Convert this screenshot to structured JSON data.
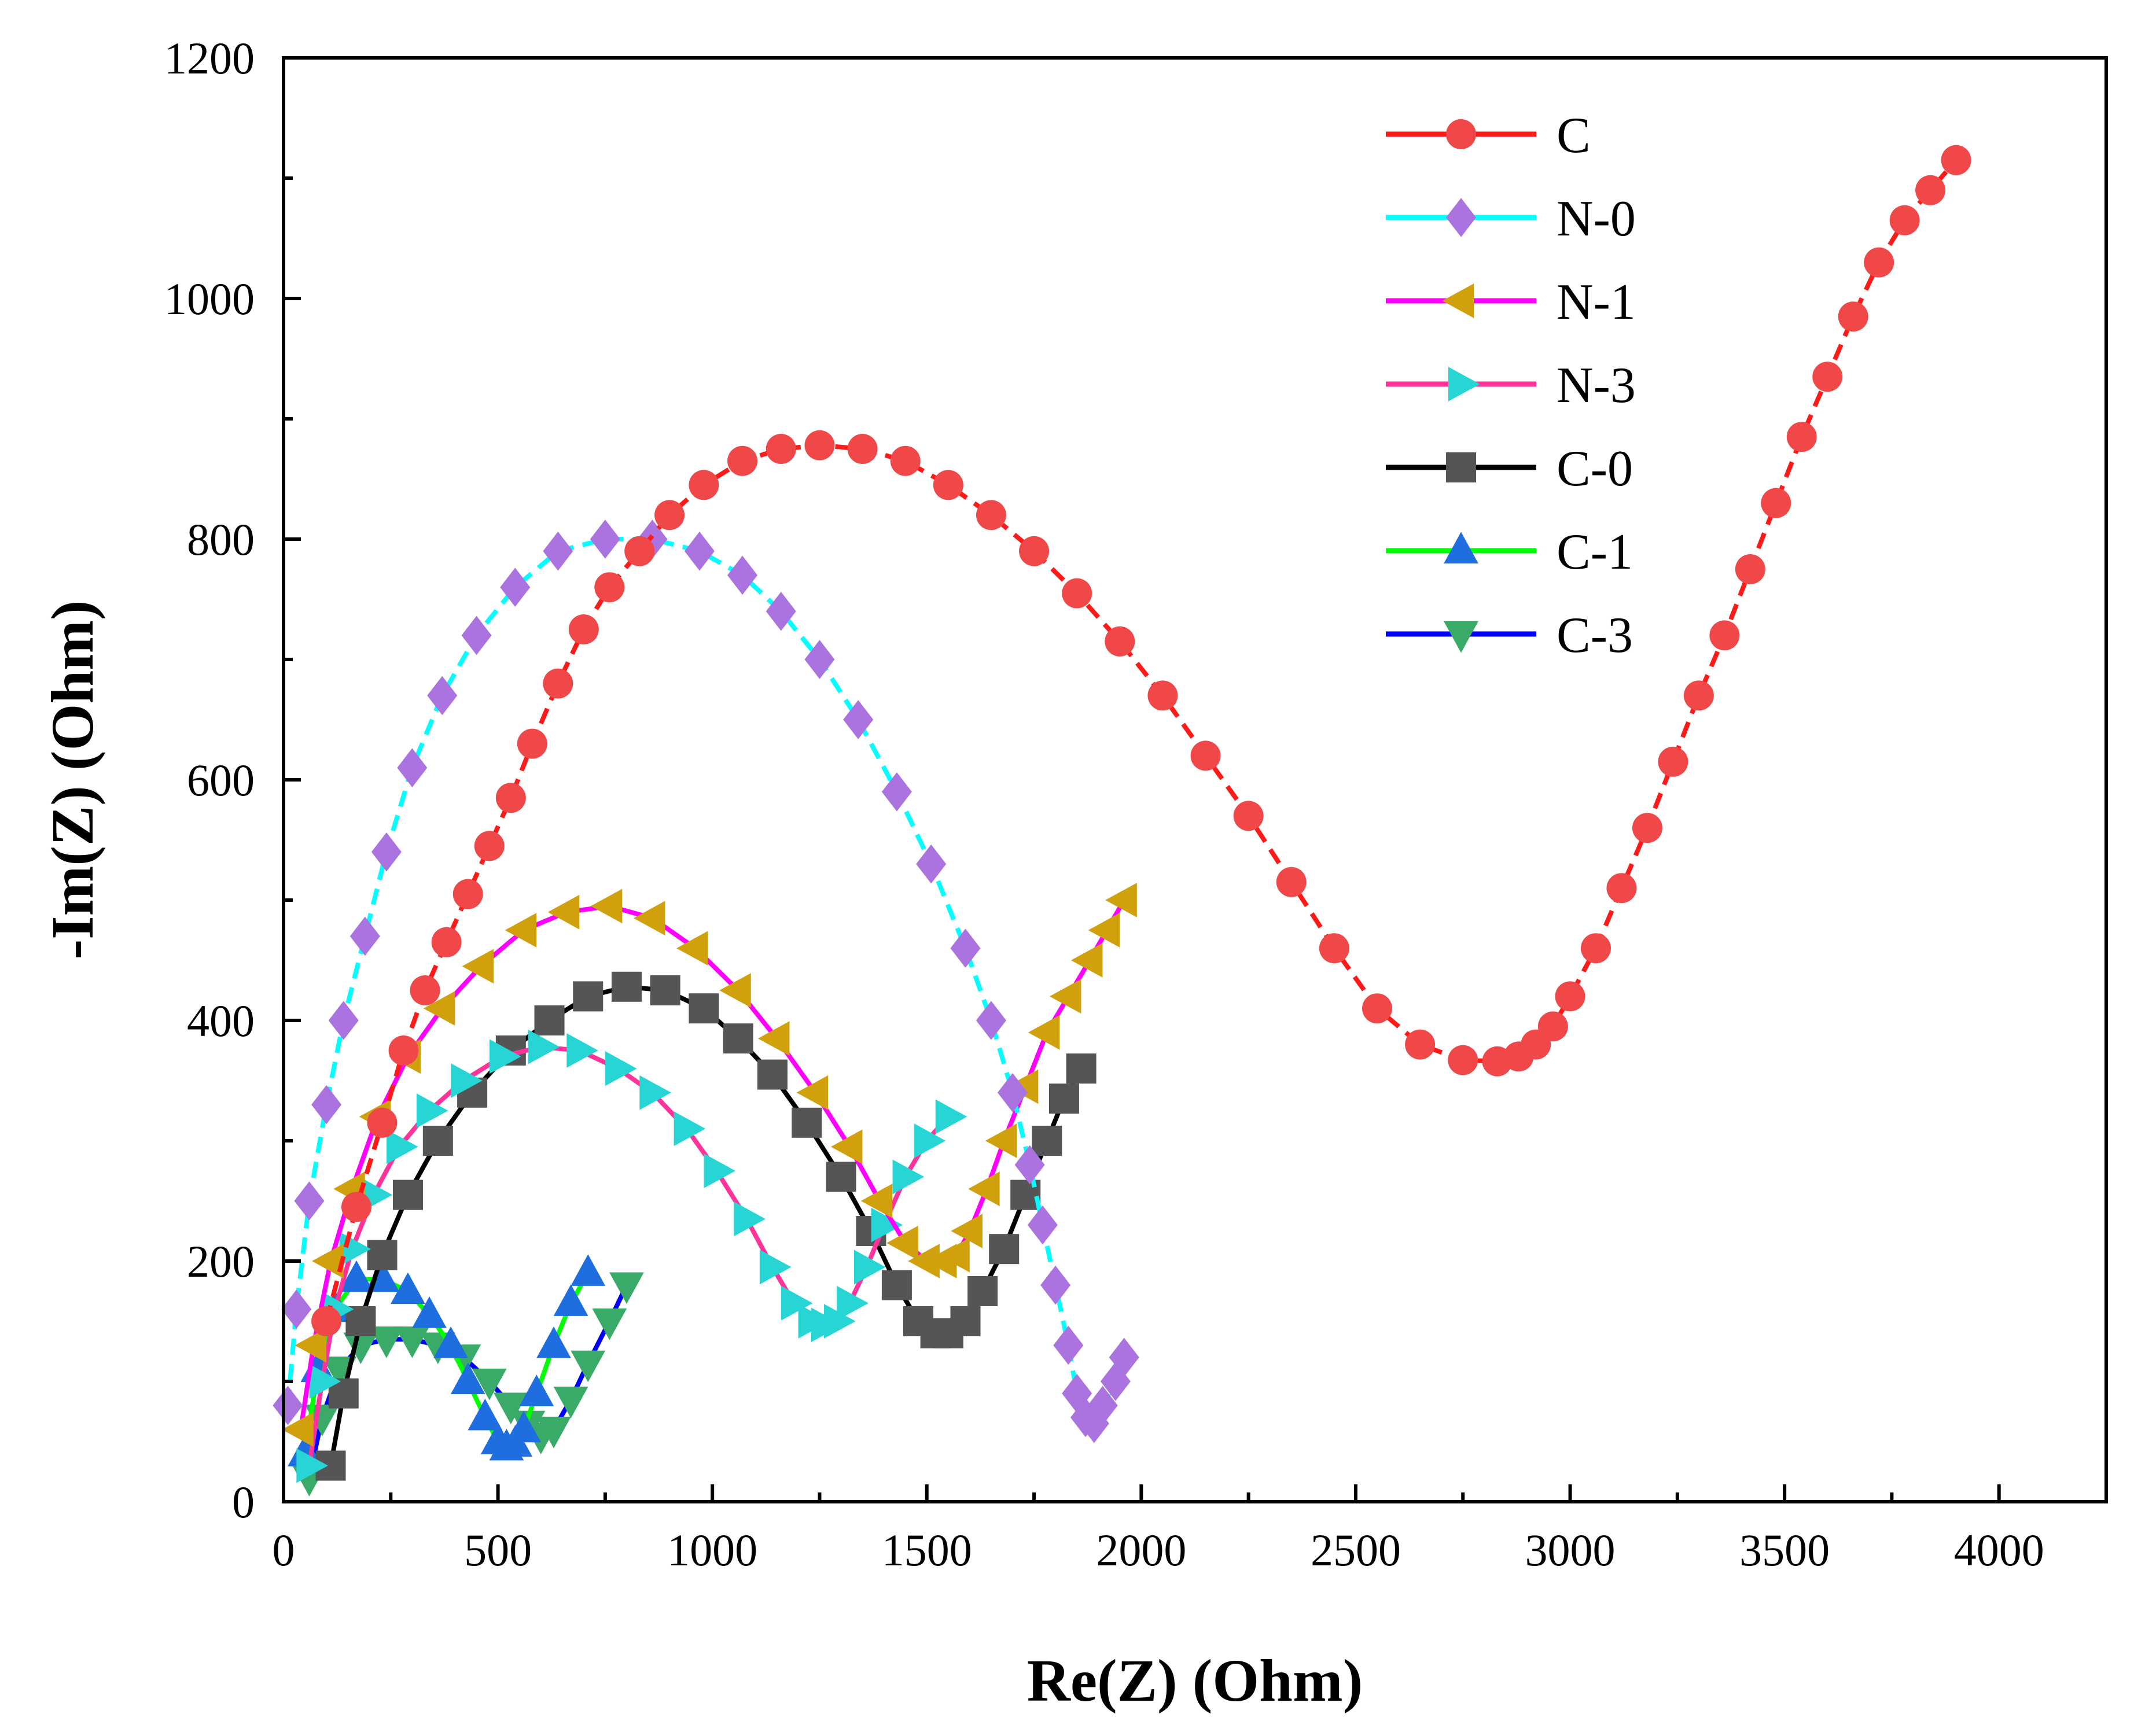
{
  "chart_data": {
    "type": "scatter",
    "title": "",
    "xlabel": "Re(Z) (Ohm)",
    "ylabel": "-Im(Z) (Ohm)",
    "xlim": [
      0,
      4250
    ],
    "ylim": [
      0,
      1200
    ],
    "x_ticks": [
      0,
      500,
      1000,
      1500,
      2000,
      2500,
      3000,
      3500,
      4000
    ],
    "y_ticks": [
      0,
      200,
      400,
      600,
      800,
      1000,
      1200
    ],
    "x_tick_labels": [
      "0",
      "500",
      "1000",
      "1500",
      "2000",
      "2500",
      "3000",
      "3500",
      "4000"
    ],
    "y_tick_labels": [
      "0",
      "200",
      "400",
      "600",
      "800",
      "1000",
      "1200"
    ],
    "legend_position": "top-right",
    "series": [
      {
        "name": "C",
        "line_color": "#ff1a1a",
        "marker_color": "#f04848",
        "marker": "circle",
        "dashed": true,
        "x": [
          100,
          170,
          230,
          280,
          330,
          380,
          430,
          480,
          530,
          580,
          640,
          700,
          760,
          830,
          900,
          980,
          1070,
          1160,
          1250,
          1350,
          1450,
          1550,
          1650,
          1750,
          1850,
          1950,
          2050,
          2150,
          2250,
          2350,
          2450,
          2550,
          2650,
          2750,
          2830,
          2880,
          2920,
          2960,
          3000,
          3060,
          3120,
          3180,
          3240,
          3300,
          3360,
          3420,
          3480,
          3540,
          3600,
          3660,
          3720,
          3780,
          3840,
          3900
        ],
        "y": [
          150,
          245,
          315,
          375,
          425,
          465,
          505,
          545,
          585,
          630,
          680,
          725,
          760,
          790,
          820,
          845,
          865,
          875,
          878,
          875,
          865,
          845,
          820,
          790,
          755,
          715,
          670,
          620,
          570,
          515,
          460,
          410,
          380,
          367,
          366,
          370,
          380,
          395,
          420,
          460,
          510,
          560,
          615,
          670,
          720,
          775,
          830,
          885,
          935,
          985,
          1030,
          1065,
          1090,
          1115
        ]
      },
      {
        "name": "N-0",
        "line_color": "#00ffff",
        "marker_color": "#ab73e0",
        "marker": "diamond",
        "dashed": true,
        "x": [
          10,
          30,
          60,
          100,
          140,
          190,
          240,
          300,
          370,
          450,
          540,
          640,
          750,
          860,
          970,
          1070,
          1160,
          1250,
          1340,
          1430,
          1510,
          1590,
          1650,
          1700,
          1740,
          1770,
          1800,
          1830,
          1850,
          1870,
          1890,
          1910,
          1940,
          1960
        ],
        "y": [
          80,
          160,
          250,
          330,
          400,
          470,
          540,
          610,
          670,
          720,
          760,
          790,
          800,
          800,
          790,
          770,
          740,
          700,
          650,
          590,
          530,
          460,
          400,
          340,
          280,
          230,
          180,
          130,
          90,
          70,
          65,
          80,
          100,
          120
        ]
      },
      {
        "name": "N-1",
        "line_color": "#ff00ff",
        "marker_color": "#d1a10d",
        "marker": "triangle-left",
        "dashed": false,
        "x": [
          40,
          70,
          110,
          160,
          220,
          290,
          370,
          460,
          560,
          660,
          760,
          860,
          960,
          1060,
          1150,
          1240,
          1320,
          1390,
          1450,
          1500,
          1540,
          1570,
          1600,
          1640,
          1680,
          1730,
          1780,
          1830,
          1880,
          1920,
          1960
        ],
        "y": [
          60,
          130,
          200,
          260,
          320,
          370,
          410,
          445,
          475,
          490,
          495,
          485,
          460,
          425,
          385,
          340,
          295,
          250,
          215,
          200,
          200,
          205,
          225,
          260,
          300,
          345,
          390,
          420,
          450,
          475,
          500
        ]
      },
      {
        "name": "N-3",
        "line_color": "#ff3399",
        "marker_color": "#27d5d5",
        "marker": "triangle-right",
        "dashed": false,
        "x": [
          60,
          90,
          120,
          160,
          210,
          270,
          340,
          420,
          510,
          600,
          690,
          780,
          860,
          940,
          1010,
          1080,
          1140,
          1190,
          1230,
          1260,
          1290,
          1320,
          1360,
          1400,
          1450,
          1500,
          1550
        ],
        "y": [
          30,
          100,
          160,
          210,
          255,
          295,
          325,
          350,
          370,
          378,
          375,
          360,
          340,
          310,
          275,
          235,
          195,
          165,
          150,
          147,
          150,
          165,
          195,
          230,
          270,
          300,
          320
        ]
      },
      {
        "name": "C-0",
        "line_color": "#000000",
        "marker_color": "#555555",
        "marker": "square",
        "dashed": false,
        "x": [
          110,
          140,
          180,
          230,
          290,
          360,
          440,
          530,
          620,
          710,
          800,
          890,
          980,
          1060,
          1140,
          1220,
          1300,
          1370,
          1430,
          1480,
          1520,
          1550,
          1590,
          1630,
          1680,
          1730,
          1780,
          1820,
          1860
        ],
        "y": [
          30,
          90,
          150,
          205,
          255,
          300,
          340,
          375,
          400,
          420,
          428,
          425,
          410,
          385,
          355,
          315,
          270,
          225,
          180,
          150,
          140,
          140,
          150,
          175,
          210,
          255,
          300,
          335,
          360
        ]
      },
      {
        "name": "C-1",
        "line_color": "#00ff00",
        "marker_color": "#1e6ee0",
        "marker": "triangle-up",
        "dashed": false,
        "x": [
          50,
          80,
          120,
          170,
          230,
          290,
          340,
          390,
          430,
          470,
          500,
          520,
          540,
          560,
          590,
          630,
          670,
          710
        ],
        "y": [
          40,
          110,
          160,
          185,
          185,
          175,
          155,
          130,
          100,
          70,
          50,
          45,
          48,
          60,
          90,
          130,
          165,
          190
        ]
      },
      {
        "name": "C-3",
        "line_color": "#0000ff",
        "marker_color": "#3aaa68",
        "marker": "triangle-down",
        "dashed": false,
        "x": [
          60,
          90,
          130,
          180,
          240,
          300,
          360,
          420,
          480,
          530,
          570,
          600,
          630,
          670,
          710,
          760,
          800
        ],
        "y": [
          20,
          70,
          110,
          130,
          135,
          135,
          130,
          120,
          100,
          80,
          65,
          55,
          60,
          85,
          115,
          150,
          180
        ]
      }
    ]
  }
}
